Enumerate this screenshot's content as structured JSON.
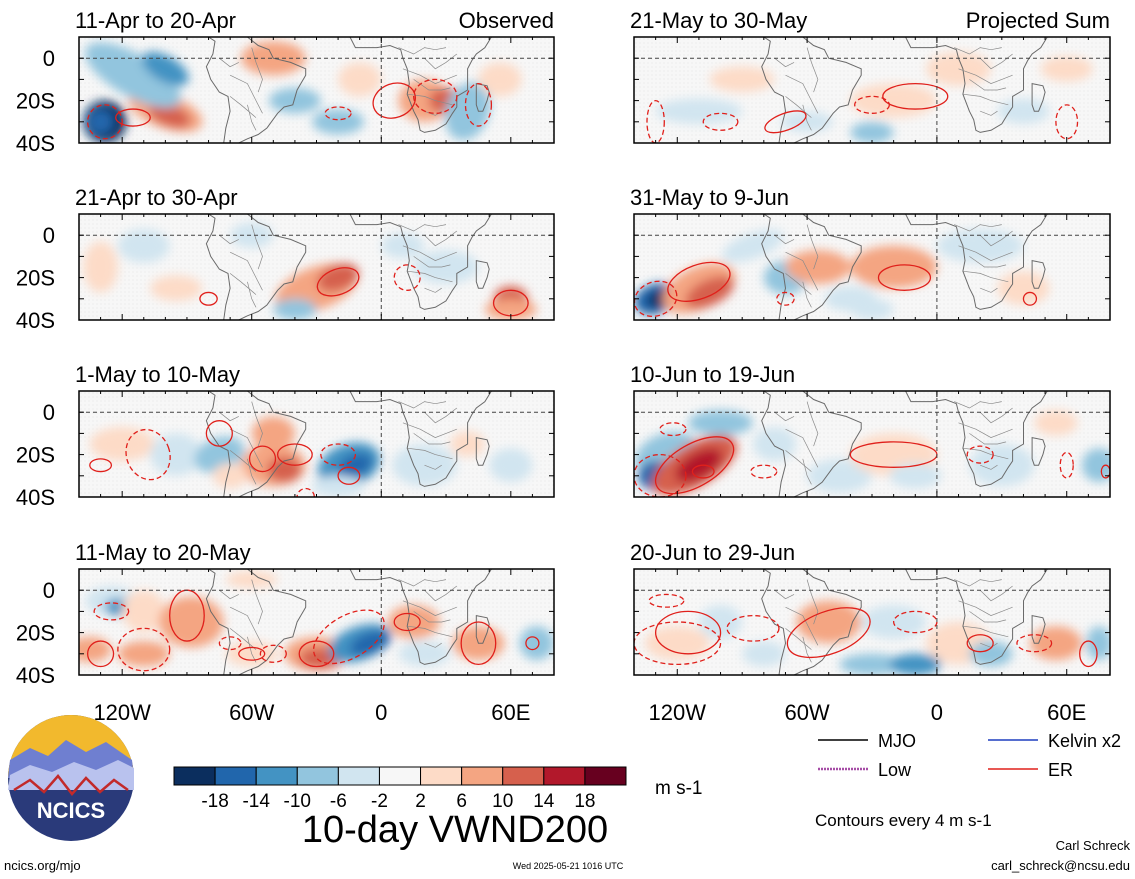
{
  "panels": [
    {
      "title": "11-Apr to 20-Apr",
      "tag": "Observed"
    },
    {
      "title": "21-May to 30-May",
      "tag": "Projected Sum"
    },
    {
      "title": "21-Apr to 30-Apr",
      "tag": ""
    },
    {
      "title": "31-May to 9-Jun",
      "tag": ""
    },
    {
      "title": "1-May to 10-May",
      "tag": ""
    },
    {
      "title": "10-Jun to 19-Jun",
      "tag": ""
    },
    {
      "title": "11-May to 20-May",
      "tag": ""
    },
    {
      "title": "20-Jun to 29-Jun",
      "tag": ""
    }
  ],
  "lat_labels": [
    "0",
    "20S",
    "40S"
  ],
  "lon_labels": [
    "120W",
    "60W",
    "0",
    "60E"
  ],
  "colorbar": {
    "colors": [
      "#0b2e5e",
      "#2166ac",
      "#4393c3",
      "#92c5de",
      "#d1e5f0",
      "#f7f7f7",
      "#fddbc7",
      "#f4a582",
      "#d6604d",
      "#b2182b",
      "#67001f"
    ],
    "ticks": [
      "-18",
      "-14",
      "-10",
      "-6",
      "-2",
      "2",
      "6",
      "10",
      "14",
      "18"
    ],
    "units": "m s-1"
  },
  "main_title": "10-day VWND200",
  "legend": {
    "items": [
      {
        "label": "MJO",
        "color": "#000000",
        "style": "solid"
      },
      {
        "label": "Kelvin x2",
        "color": "#1f3fbf",
        "style": "solid"
      },
      {
        "label": "Low",
        "color": "#a64ca6",
        "style": "dotted"
      },
      {
        "label": "ER",
        "color": "#e0201b",
        "style": "solid"
      }
    ],
    "contour_note": "Contours every 4 m s-1"
  },
  "logo": {
    "text": "NCICS"
  },
  "footer": {
    "url": "ncics.org/mjo",
    "timestamp": "Wed 2025-05-21 1016 UTC",
    "author": "Carl Schreck",
    "email": "carl_schreck@ncsu.edu"
  }
}
